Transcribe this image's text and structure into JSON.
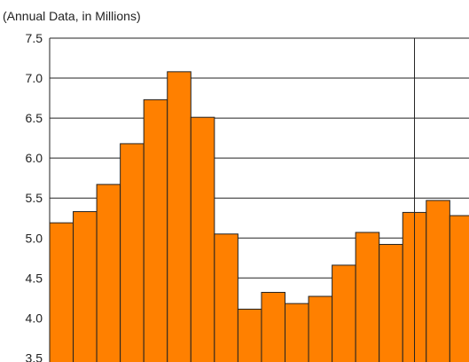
{
  "chart_data": {
    "type": "bar",
    "subtitle": "(Annual Data, in Millions)",
    "title": "",
    "xlabel": "",
    "ylabel": "",
    "ylim": [
      3.5,
      7.5
    ],
    "yticks": [
      "3.5",
      "4.0",
      "4.5",
      "5.0",
      "5.5",
      "6.0",
      "6.5",
      "7.0",
      "7.5"
    ],
    "grid": "horizontal",
    "bar_color": "#ff8000",
    "bar_edge_color": "#222222",
    "values": [
      5.19,
      5.33,
      5.67,
      6.18,
      6.73,
      7.08,
      6.51,
      5.05,
      4.11,
      4.32,
      4.18,
      4.27,
      4.66,
      5.07,
      4.92,
      5.32,
      5.47,
      5.28
    ]
  }
}
